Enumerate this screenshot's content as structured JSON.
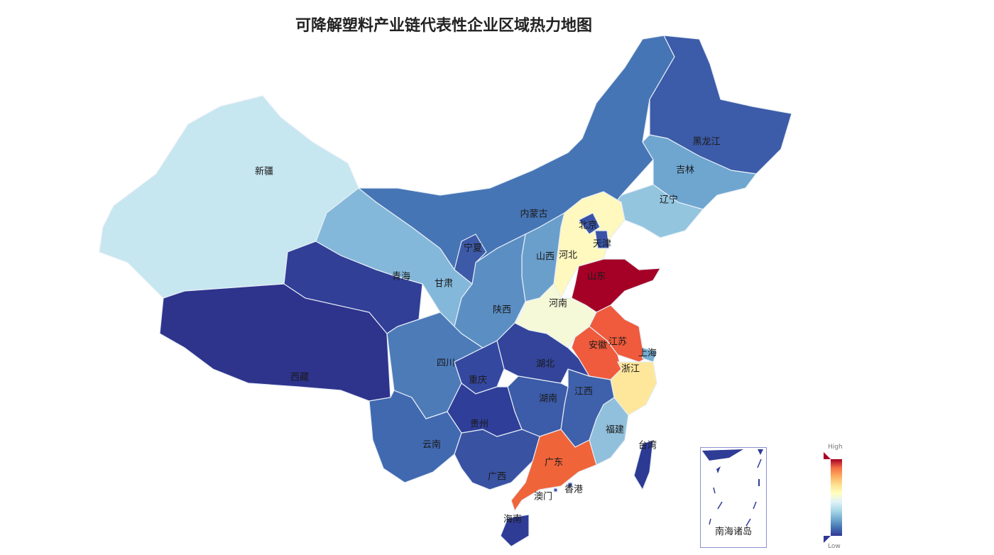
{
  "title": "可降解塑料产业链代表性企业区域热力地图",
  "provinces": [
    {
      "name": "新疆",
      "color": "#c6e6f0"
    },
    {
      "name": "西藏",
      "color": "#2e338c"
    },
    {
      "name": "青海",
      "color": "#323f97"
    },
    {
      "name": "甘肃",
      "color": "#84b8da"
    },
    {
      "name": "内蒙古",
      "color": "#4675b5"
    },
    {
      "name": "黑龙江",
      "color": "#3c5ba8"
    },
    {
      "name": "吉林",
      "color": "#6ea6d0"
    },
    {
      "name": "辽宁",
      "color": "#93c5df"
    },
    {
      "name": "河北",
      "color": "#fff8bf"
    },
    {
      "name": "北京",
      "color": "#3a53a6"
    },
    {
      "name": "天津",
      "color": "#3a53a6"
    },
    {
      "name": "山西",
      "color": "#6a9fcc"
    },
    {
      "name": "山东",
      "color": "#a50026"
    },
    {
      "name": "河南",
      "color": "#f5f9d8"
    },
    {
      "name": "江苏",
      "color": "#ef5b3c"
    },
    {
      "name": "安徽",
      "color": "#ef5b3c"
    },
    {
      "name": "上海",
      "color": "#74add1"
    },
    {
      "name": "浙江",
      "color": "#fee79a"
    },
    {
      "name": "福建",
      "color": "#91c0dc"
    },
    {
      "name": "江西",
      "color": "#3f60aa"
    },
    {
      "name": "湖北",
      "color": "#33449a"
    },
    {
      "name": "湖南",
      "color": "#3c5ba8"
    },
    {
      "name": "广东",
      "color": "#f0643a"
    },
    {
      "name": "广西",
      "color": "#3a52a2"
    },
    {
      "name": "海南",
      "color": "#2f3c96"
    },
    {
      "name": "云南",
      "color": "#4169b0"
    },
    {
      "name": "四川",
      "color": "#4c7bb8"
    },
    {
      "name": "重庆",
      "color": "#3548a0"
    },
    {
      "name": "贵州",
      "color": "#2f3e98"
    },
    {
      "name": "陕西",
      "color": "#5b8fc4"
    },
    {
      "name": "宁夏",
      "color": "#3d5aa8"
    },
    {
      "name": "台湾",
      "color": "#2d3a94"
    },
    {
      "name": "香港",
      "color": "#3a53a6"
    },
    {
      "name": "澳门",
      "color": "#3a53a6"
    }
  ],
  "inset": {
    "label": "南海诸岛"
  },
  "legend": {
    "high": "High",
    "low": "Low",
    "high_color": "#a50026",
    "low_color": "#313695"
  }
}
